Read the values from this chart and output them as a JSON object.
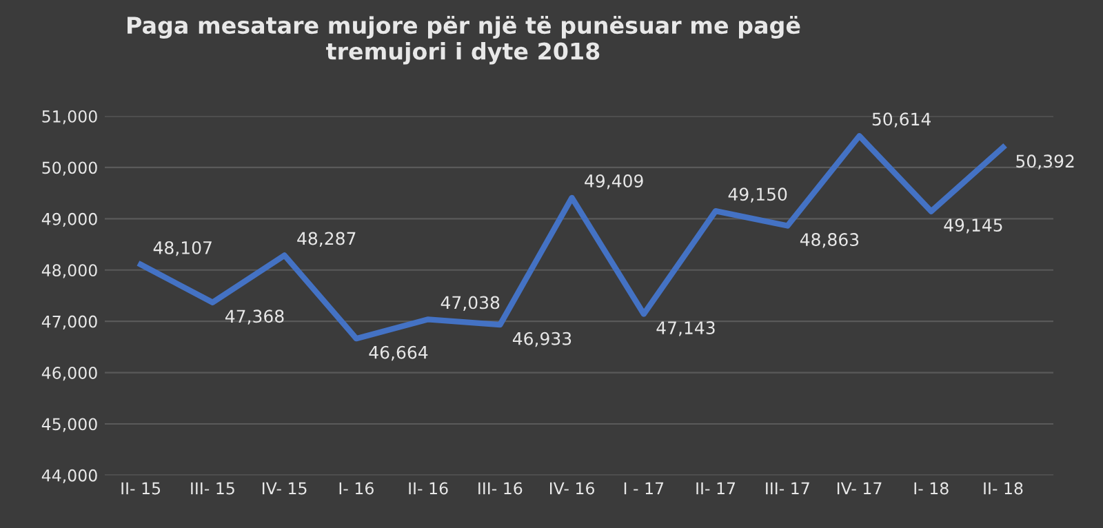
{
  "chart_data": {
    "type": "line",
    "title": "Paga mesatare mujore për një të punësuar me pagë\ntremujori i dyte 2018",
    "categories": [
      "II- 15",
      "III- 15",
      "IV- 15",
      "I- 16",
      "II- 16",
      "III- 16",
      "IV- 16",
      "I - 17",
      "II- 17",
      "III- 17",
      "IV- 17",
      "I- 18",
      "II- 18"
    ],
    "series": [
      {
        "color": "#4472c4",
        "values": [
          48107,
          47368,
          48287,
          46664,
          47038,
          46933,
          49409,
          47143,
          49150,
          48863,
          50614,
          49145,
          50392
        ],
        "value_labels": [
          "48,107",
          "47,368",
          "48,287",
          "46,664",
          "47,038",
          "46,933",
          "49,409",
          "47,143",
          "49,150",
          "48,863",
          "50,614",
          "49,145",
          "50,392"
        ]
      }
    ],
    "ylim": [
      44000,
      51000
    ],
    "yticks": [
      {
        "value": 44000,
        "label": "44,000"
      },
      {
        "value": 45000,
        "label": "45,000"
      },
      {
        "value": 46000,
        "label": "46,000"
      },
      {
        "value": 47000,
        "label": "47,000"
      },
      {
        "value": 48000,
        "label": "48,000"
      },
      {
        "value": 49000,
        "label": "49,000"
      },
      {
        "value": 50000,
        "label": "50,000"
      },
      {
        "value": 51000,
        "label": "51,000"
      }
    ],
    "grid": "y",
    "marker": "none",
    "line_style": "solid",
    "legend": false
  }
}
